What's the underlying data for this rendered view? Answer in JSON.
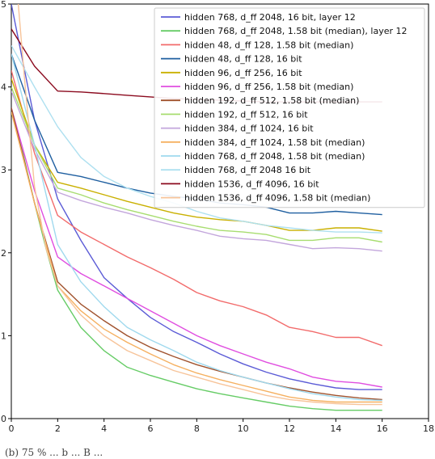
{
  "chart_data": {
    "type": "line",
    "xlim": [
      0,
      18
    ],
    "ylim": [
      0,
      5
    ],
    "x_ticks": [
      "0",
      "2",
      "4",
      "6",
      "8",
      "10",
      "12",
      "14",
      "16",
      "18"
    ],
    "y_ticks": [
      "0",
      "1",
      "2",
      "3",
      "4",
      "5"
    ],
    "grid": false,
    "legend_position": "top-right",
    "series": [
      {
        "name": "hidden 768, d_ff 2048,  16 bit, layer 12",
        "color": "#5b5bd6",
        "x": [
          0,
          1,
          2,
          3,
          4,
          5,
          6,
          7,
          8,
          9,
          10,
          11,
          12,
          13,
          14,
          15,
          16
        ],
        "y": [
          5.0,
          3.6,
          2.65,
          2.15,
          1.7,
          1.45,
          1.22,
          1.05,
          0.92,
          0.78,
          0.66,
          0.56,
          0.48,
          0.42,
          0.37,
          0.35,
          0.35
        ]
      },
      {
        "name": "hidden 768, d_ff 2048,  1.58 bit (median), layer 12",
        "color": "#66cc66",
        "x": [
          0,
          0.5,
          1,
          1.5,
          2,
          3,
          4,
          5,
          6,
          7,
          8,
          9,
          10,
          11,
          12,
          13,
          14,
          15,
          16
        ],
        "y": [
          3.7,
          3.2,
          2.6,
          2.05,
          1.55,
          1.1,
          0.82,
          0.62,
          0.52,
          0.44,
          0.36,
          0.3,
          0.25,
          0.2,
          0.15,
          0.12,
          0.1,
          0.1,
          0.1
        ]
      },
      {
        "name": "hidden 48, d_ff 128,  1.58 bit (median)",
        "color": "#f26b6b",
        "x": [
          0,
          1,
          2,
          3,
          4,
          5,
          6,
          7,
          8,
          9,
          10,
          11,
          12,
          13,
          14,
          15,
          16
        ],
        "y": [
          4.2,
          3.2,
          2.45,
          2.25,
          2.1,
          1.95,
          1.82,
          1.68,
          1.52,
          1.42,
          1.35,
          1.25,
          1.1,
          1.05,
          0.98,
          0.98,
          0.88
        ]
      },
      {
        "name": "hidden 48, d_ff 128, 16 bit",
        "color": "#1f5fa0",
        "x": [
          0,
          1,
          2,
          3,
          4,
          5,
          6,
          7,
          8,
          9,
          10,
          11,
          12,
          13,
          14,
          15,
          16
        ],
        "y": [
          4.4,
          3.6,
          2.97,
          2.92,
          2.85,
          2.78,
          2.72,
          2.68,
          2.65,
          2.6,
          2.58,
          2.55,
          2.48,
          2.48,
          2.5,
          2.48,
          2.46
        ]
      },
      {
        "name": "hidden 96, d_ff 256, 16 bit",
        "color": "#c9b000",
        "x": [
          0,
          1,
          2,
          3,
          4,
          5,
          6,
          7,
          8,
          9,
          10,
          11,
          12,
          13,
          14,
          15,
          16
        ],
        "y": [
          4.1,
          3.3,
          2.85,
          2.78,
          2.7,
          2.62,
          2.55,
          2.48,
          2.43,
          2.4,
          2.38,
          2.33,
          2.27,
          2.27,
          2.3,
          2.3,
          2.26
        ]
      },
      {
        "name": "hidden 96, d_ff 256,  1.58 bit (median)",
        "color": "#e04ee0",
        "x": [
          0,
          1,
          2,
          3,
          4,
          5,
          6,
          7,
          8,
          9,
          10,
          11,
          12,
          13,
          14,
          15,
          16
        ],
        "y": [
          3.75,
          2.75,
          1.95,
          1.75,
          1.6,
          1.45,
          1.3,
          1.15,
          1.0,
          0.88,
          0.78,
          0.68,
          0.6,
          0.5,
          0.45,
          0.43,
          0.38
        ]
      },
      {
        "name": "hidden 192, d_ff 512,  1.58 bit (median)",
        "color": "#a0522d",
        "x": [
          0,
          1,
          2,
          3,
          4,
          5,
          6,
          7,
          8,
          9,
          10,
          11,
          12,
          13,
          14,
          15,
          16
        ],
        "y": [
          3.75,
          2.6,
          1.65,
          1.38,
          1.18,
          1.0,
          0.86,
          0.75,
          0.65,
          0.57,
          0.5,
          0.43,
          0.37,
          0.32,
          0.28,
          0.25,
          0.23
        ]
      },
      {
        "name": "hidden 192, d_ff 512, 16 bit",
        "color": "#a8dd70",
        "x": [
          0,
          1,
          2,
          3,
          4,
          5,
          6,
          7,
          8,
          9,
          10,
          11,
          12,
          13,
          14,
          15,
          16
        ],
        "y": [
          4.0,
          3.3,
          2.78,
          2.7,
          2.6,
          2.52,
          2.45,
          2.38,
          2.32,
          2.27,
          2.25,
          2.22,
          2.15,
          2.15,
          2.18,
          2.18,
          2.13
        ]
      },
      {
        "name": "hidden 384, d_ff 1024,  16 bit",
        "color": "#c3a6dc",
        "x": [
          0,
          1,
          2,
          3,
          4,
          5,
          6,
          7,
          8,
          9,
          10,
          11,
          12,
          13,
          14,
          15,
          16
        ],
        "y": [
          3.95,
          3.25,
          2.73,
          2.63,
          2.55,
          2.48,
          2.4,
          2.33,
          2.27,
          2.2,
          2.17,
          2.15,
          2.1,
          2.05,
          2.06,
          2.05,
          2.02
        ]
      },
      {
        "name": "hidden 384, d_ff 1024,  1.58 bit (median)",
        "color": "#f5b060",
        "x": [
          0,
          1,
          2,
          3,
          4,
          5,
          6,
          7,
          8,
          9,
          10,
          11,
          12,
          13,
          14,
          15,
          16
        ],
        "y": [
          3.7,
          2.6,
          1.6,
          1.3,
          1.08,
          0.92,
          0.78,
          0.65,
          0.55,
          0.47,
          0.4,
          0.33,
          0.26,
          0.22,
          0.2,
          0.2,
          0.2
        ]
      },
      {
        "name": "hidden 768, d_ff 2048,  1.58 bit (median)",
        "color": "#9fd9ee",
        "x": [
          0,
          1,
          2,
          3,
          4,
          5,
          6,
          7,
          8,
          9,
          10,
          11,
          12,
          13,
          14,
          15,
          16
        ],
        "y": [
          4.4,
          3.3,
          2.1,
          1.65,
          1.35,
          1.1,
          0.95,
          0.82,
          0.68,
          0.58,
          0.5,
          0.43,
          0.36,
          0.3,
          0.26,
          0.23,
          0.22
        ]
      },
      {
        "name": "hidden 768, d_ff 2048  16 bit",
        "color": "#aee0f0",
        "x": [
          0,
          1,
          2,
          3,
          4,
          5,
          6,
          7,
          8,
          9,
          10,
          11,
          12,
          13,
          14,
          15,
          16
        ],
        "y": [
          4.5,
          4.0,
          3.52,
          3.15,
          2.92,
          2.78,
          2.68,
          2.6,
          2.5,
          2.42,
          2.38,
          2.33,
          2.3,
          2.27,
          2.25,
          2.25,
          2.24
        ]
      },
      {
        "name": "hidden 1536, d_ff 4096,  16 bit",
        "color": "#8b0a1e",
        "x": [
          0,
          1,
          2,
          3,
          4,
          5,
          6,
          7,
          8,
          9,
          10,
          11,
          12,
          13,
          14,
          15,
          16
        ],
        "y": [
          4.7,
          4.25,
          3.95,
          3.94,
          3.92,
          3.9,
          3.88,
          3.86,
          3.85,
          3.84,
          3.83,
          3.82,
          3.82,
          3.82,
          3.82,
          3.82,
          3.82
        ]
      },
      {
        "name": "hidden 1536, d_ff 4096,  1.58 bit (median)",
        "color": "#f7c49a",
        "x": [
          0.3,
          0.6,
          1,
          1.5,
          2,
          3,
          4,
          5,
          6,
          7,
          8,
          9,
          10,
          11,
          12,
          13,
          14,
          15,
          16
        ],
        "y": [
          5.0,
          4.0,
          2.8,
          2.05,
          1.6,
          1.25,
          1.0,
          0.82,
          0.7,
          0.58,
          0.5,
          0.42,
          0.35,
          0.28,
          0.23,
          0.2,
          0.18,
          0.17,
          0.17
        ]
      }
    ]
  },
  "caption": "(b) 75 % ... b ... B ..."
}
